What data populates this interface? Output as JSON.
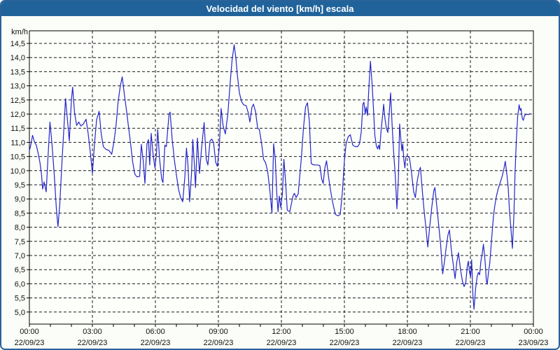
{
  "window": {
    "title": "Velocidad del viento [km/h] escala"
  },
  "colors": {
    "titlebar_bg": "#20639b",
    "titlebar_text": "#ffffff",
    "window_border": "#2a6399",
    "page_bg": "#fbfdf8",
    "plot_bg": "#fdfffb",
    "grid": "#1a1a1a",
    "frame": "#000000",
    "axis_text": "#111111",
    "line": "#2525c8"
  },
  "chart_data": {
    "type": "line",
    "title": "Velocidad del viento [km/h] escala",
    "ylabel": "km/h",
    "ylim": [
      5.0,
      14.5
    ],
    "ytick_step": 0.5,
    "xlim_hours": [
      0,
      24
    ],
    "minor_xtick_hours": 1,
    "grid": "dashed",
    "legend": "none",
    "xticks": [
      {
        "hour": 0,
        "time": "00:00",
        "date": "22/09/23"
      },
      {
        "hour": 3,
        "time": "03:00",
        "date": "22/09/23"
      },
      {
        "hour": 6,
        "time": "06:00",
        "date": "22/09/23"
      },
      {
        "hour": 9,
        "time": "09:00",
        "date": "22/09/23"
      },
      {
        "hour": 12,
        "time": "12:00",
        "date": "22/09/23"
      },
      {
        "hour": 15,
        "time": "15:00",
        "date": "22/09/23"
      },
      {
        "hour": 18,
        "time": "18:00",
        "date": "22/09/23"
      },
      {
        "hour": 21,
        "time": "21:00",
        "date": "22/09/23"
      },
      {
        "hour": 24,
        "time": "00:00",
        "date": "23/09/23"
      }
    ],
    "series": [
      {
        "name": "Velocidad del viento",
        "points": [
          [
            0.0,
            10.7
          ],
          [
            0.08,
            10.95
          ],
          [
            0.15,
            11.25
          ],
          [
            0.25,
            11.0
          ],
          [
            0.33,
            10.9
          ],
          [
            0.42,
            10.6
          ],
          [
            0.5,
            10.3
          ],
          [
            0.58,
            9.85
          ],
          [
            0.63,
            9.35
          ],
          [
            0.7,
            9.6
          ],
          [
            0.8,
            9.25
          ],
          [
            0.88,
            10.4
          ],
          [
            0.98,
            11.72
          ],
          [
            1.08,
            10.9
          ],
          [
            1.18,
            9.9
          ],
          [
            1.28,
            8.7
          ],
          [
            1.36,
            8.02
          ],
          [
            1.45,
            8.85
          ],
          [
            1.55,
            10.3
          ],
          [
            1.65,
            11.6
          ],
          [
            1.72,
            12.55
          ],
          [
            1.8,
            11.9
          ],
          [
            1.9,
            11.05
          ],
          [
            2.0,
            12.5
          ],
          [
            2.06,
            12.95
          ],
          [
            2.15,
            12.05
          ],
          [
            2.25,
            11.6
          ],
          [
            2.35,
            11.72
          ],
          [
            2.45,
            11.58
          ],
          [
            2.57,
            11.65
          ],
          [
            2.7,
            11.82
          ],
          [
            2.8,
            11.3
          ],
          [
            2.9,
            10.65
          ],
          [
            3.0,
            9.9
          ],
          [
            3.1,
            10.95
          ],
          [
            3.2,
            11.8
          ],
          [
            3.32,
            12.1
          ],
          [
            3.42,
            11.3
          ],
          [
            3.52,
            10.85
          ],
          [
            3.65,
            10.75
          ],
          [
            3.78,
            10.72
          ],
          [
            3.92,
            10.58
          ],
          [
            4.02,
            11.0
          ],
          [
            4.12,
            11.55
          ],
          [
            4.22,
            12.4
          ],
          [
            4.32,
            12.95
          ],
          [
            4.42,
            13.32
          ],
          [
            4.52,
            12.7
          ],
          [
            4.62,
            12.15
          ],
          [
            4.72,
            11.55
          ],
          [
            4.82,
            10.95
          ],
          [
            4.92,
            10.3
          ],
          [
            5.02,
            9.88
          ],
          [
            5.12,
            9.78
          ],
          [
            5.25,
            9.8
          ],
          [
            5.33,
            10.93
          ],
          [
            5.42,
            10.35
          ],
          [
            5.5,
            9.55
          ],
          [
            5.6,
            10.95
          ],
          [
            5.67,
            11.1
          ],
          [
            5.73,
            10.2
          ],
          [
            5.8,
            11.32
          ],
          [
            5.9,
            10.5
          ],
          [
            5.98,
            10.1
          ],
          [
            6.05,
            10.6
          ],
          [
            6.11,
            11.45
          ],
          [
            6.2,
            10.4
          ],
          [
            6.3,
            9.7
          ],
          [
            6.36,
            9.58
          ],
          [
            6.45,
            10.9
          ],
          [
            6.52,
            10.85
          ],
          [
            6.65,
            12.0
          ],
          [
            6.7,
            12.07
          ],
          [
            6.8,
            11.1
          ],
          [
            6.9,
            10.4
          ],
          [
            7.0,
            9.85
          ],
          [
            7.1,
            9.35
          ],
          [
            7.2,
            9.05
          ],
          [
            7.3,
            8.9
          ],
          [
            7.4,
            9.75
          ],
          [
            7.48,
            10.8
          ],
          [
            7.55,
            10.2
          ],
          [
            7.63,
            8.9
          ],
          [
            7.72,
            9.9
          ],
          [
            7.78,
            11.1
          ],
          [
            7.85,
            10.3
          ],
          [
            7.91,
            9.4
          ],
          [
            8.0,
            11.15
          ],
          [
            8.1,
            9.9
          ],
          [
            8.2,
            10.8
          ],
          [
            8.32,
            11.7
          ],
          [
            8.42,
            10.4
          ],
          [
            8.5,
            10.2
          ],
          [
            8.6,
            11.05
          ],
          [
            8.68,
            11.12
          ],
          [
            8.77,
            11.0
          ],
          [
            8.87,
            10.3
          ],
          [
            8.95,
            10.15
          ],
          [
            9.04,
            10.8
          ],
          [
            9.13,
            12.2
          ],
          [
            9.22,
            11.6
          ],
          [
            9.33,
            11.3
          ],
          [
            9.45,
            12.0
          ],
          [
            9.55,
            13.0
          ],
          [
            9.65,
            13.9
          ],
          [
            9.75,
            14.45
          ],
          [
            9.83,
            14.0
          ],
          [
            9.9,
            13.4
          ],
          [
            10.0,
            12.75
          ],
          [
            10.1,
            12.45
          ],
          [
            10.2,
            12.33
          ],
          [
            10.32,
            12.3
          ],
          [
            10.42,
            12.05
          ],
          [
            10.5,
            11.72
          ],
          [
            10.6,
            12.25
          ],
          [
            10.67,
            12.35
          ],
          [
            10.77,
            12.08
          ],
          [
            10.87,
            11.5
          ],
          [
            10.95,
            11.45
          ],
          [
            11.05,
            11.0
          ],
          [
            11.15,
            10.4
          ],
          [
            11.25,
            10.28
          ],
          [
            11.35,
            9.95
          ],
          [
            11.45,
            9.3
          ],
          [
            11.55,
            8.5
          ],
          [
            11.63,
            10.95
          ],
          [
            11.71,
            10.4
          ],
          [
            11.78,
            9.2
          ],
          [
            11.84,
            8.55
          ],
          [
            11.9,
            9.1
          ],
          [
            11.97,
            8.7
          ],
          [
            12.05,
            9.2
          ],
          [
            12.12,
            10.4
          ],
          [
            12.2,
            9.6
          ],
          [
            12.28,
            8.6
          ],
          [
            12.4,
            8.55
          ],
          [
            12.55,
            9.1
          ],
          [
            12.62,
            9.2
          ],
          [
            12.7,
            9.05
          ],
          [
            12.8,
            9.18
          ],
          [
            12.95,
            10.45
          ],
          [
            13.05,
            11.5
          ],
          [
            13.15,
            12.25
          ],
          [
            13.24,
            12.4
          ],
          [
            13.33,
            11.75
          ],
          [
            13.42,
            10.25
          ],
          [
            13.55,
            10.2
          ],
          [
            13.7,
            10.2
          ],
          [
            13.83,
            10.18
          ],
          [
            13.92,
            9.7
          ],
          [
            13.99,
            9.55
          ],
          [
            14.07,
            10.1
          ],
          [
            14.15,
            10.35
          ],
          [
            14.25,
            9.75
          ],
          [
            14.34,
            9.3
          ],
          [
            14.45,
            8.85
          ],
          [
            14.57,
            8.45
          ],
          [
            14.7,
            8.4
          ],
          [
            14.8,
            8.45
          ],
          [
            14.9,
            9.2
          ],
          [
            15.0,
            10.35
          ],
          [
            15.08,
            10.95
          ],
          [
            15.18,
            11.2
          ],
          [
            15.28,
            11.27
          ],
          [
            15.4,
            10.9
          ],
          [
            15.52,
            10.85
          ],
          [
            15.63,
            10.85
          ],
          [
            15.72,
            10.95
          ],
          [
            15.8,
            11.35
          ],
          [
            15.88,
            12.35
          ],
          [
            15.93,
            12.42
          ],
          [
            15.99,
            12.0
          ],
          [
            16.04,
            12.25
          ],
          [
            16.1,
            11.95
          ],
          [
            16.17,
            13.0
          ],
          [
            16.24,
            13.87
          ],
          [
            16.32,
            13.05
          ],
          [
            16.38,
            12.25
          ],
          [
            16.45,
            11.25
          ],
          [
            16.52,
            10.88
          ],
          [
            16.58,
            10.77
          ],
          [
            16.63,
            10.9
          ],
          [
            16.68,
            10.75
          ],
          [
            16.75,
            11.45
          ],
          [
            16.82,
            11.95
          ],
          [
            16.87,
            12.35
          ],
          [
            16.93,
            11.85
          ],
          [
            17.0,
            11.5
          ],
          [
            17.07,
            11.35
          ],
          [
            17.14,
            12.1
          ],
          [
            17.2,
            12.75
          ],
          [
            17.28,
            11.5
          ],
          [
            17.35,
            10.6
          ],
          [
            17.42,
            9.85
          ],
          [
            17.5,
            8.65
          ],
          [
            17.57,
            9.7
          ],
          [
            17.63,
            11.65
          ],
          [
            17.7,
            11.0
          ],
          [
            17.74,
            10.7
          ],
          [
            17.78,
            10.95
          ],
          [
            17.83,
            10.4
          ],
          [
            17.88,
            10.1
          ],
          [
            17.93,
            10.5
          ],
          [
            18.0,
            10.52
          ],
          [
            18.1,
            10.45
          ],
          [
            18.2,
            9.9
          ],
          [
            18.3,
            9.25
          ],
          [
            18.38,
            9.05
          ],
          [
            18.46,
            9.6
          ],
          [
            18.56,
            10.0
          ],
          [
            18.62,
            10.12
          ],
          [
            18.72,
            9.2
          ],
          [
            18.8,
            8.55
          ],
          [
            18.88,
            8.0
          ],
          [
            18.97,
            7.3
          ],
          [
            19.06,
            8.0
          ],
          [
            19.16,
            8.7
          ],
          [
            19.26,
            9.3
          ],
          [
            19.31,
            9.4
          ],
          [
            19.42,
            8.6
          ],
          [
            19.5,
            8.0
          ],
          [
            19.58,
            7.4
          ],
          [
            19.68,
            6.35
          ],
          [
            19.77,
            6.82
          ],
          [
            19.85,
            7.3
          ],
          [
            19.93,
            7.72
          ],
          [
            20.0,
            7.9
          ],
          [
            20.1,
            7.15
          ],
          [
            20.18,
            6.7
          ],
          [
            20.27,
            6.18
          ],
          [
            20.35,
            6.75
          ],
          [
            20.43,
            7.1
          ],
          [
            20.53,
            6.5
          ],
          [
            20.62,
            6.1
          ],
          [
            20.7,
            5.9
          ],
          [
            20.78,
            6.05
          ],
          [
            20.85,
            6.6
          ],
          [
            20.9,
            6.8
          ],
          [
            20.96,
            6.4
          ],
          [
            21.01,
            6.25
          ],
          [
            21.06,
            6.85
          ],
          [
            21.12,
            5.6
          ],
          [
            21.17,
            5.1
          ],
          [
            21.25,
            5.85
          ],
          [
            21.32,
            6.25
          ],
          [
            21.38,
            6.4
          ],
          [
            21.44,
            6.32
          ],
          [
            21.5,
            6.8
          ],
          [
            21.57,
            7.1
          ],
          [
            21.62,
            7.4
          ],
          [
            21.7,
            6.8
          ],
          [
            21.76,
            6.1
          ],
          [
            21.8,
            5.98
          ],
          [
            21.86,
            6.4
          ],
          [
            21.92,
            6.7
          ],
          [
            21.98,
            7.3
          ],
          [
            22.04,
            7.85
          ],
          [
            22.1,
            8.4
          ],
          [
            22.16,
            8.75
          ],
          [
            22.24,
            9.1
          ],
          [
            22.32,
            9.35
          ],
          [
            22.42,
            9.58
          ],
          [
            22.52,
            9.82
          ],
          [
            22.6,
            10.08
          ],
          [
            22.66,
            10.33
          ],
          [
            22.74,
            9.85
          ],
          [
            22.8,
            9.4
          ],
          [
            22.86,
            8.6
          ],
          [
            22.93,
            7.95
          ],
          [
            23.0,
            7.25
          ],
          [
            23.07,
            8.4
          ],
          [
            23.13,
            10.0
          ],
          [
            23.19,
            11.1
          ],
          [
            23.25,
            11.9
          ],
          [
            23.32,
            12.33
          ],
          [
            23.37,
            12.13
          ],
          [
            23.41,
            12.2
          ],
          [
            23.47,
            11.85
          ],
          [
            23.52,
            11.78
          ],
          [
            23.58,
            11.95
          ],
          [
            23.67,
            12.0
          ],
          [
            23.76,
            11.98
          ],
          [
            23.83,
            12.02
          ]
        ]
      }
    ]
  }
}
